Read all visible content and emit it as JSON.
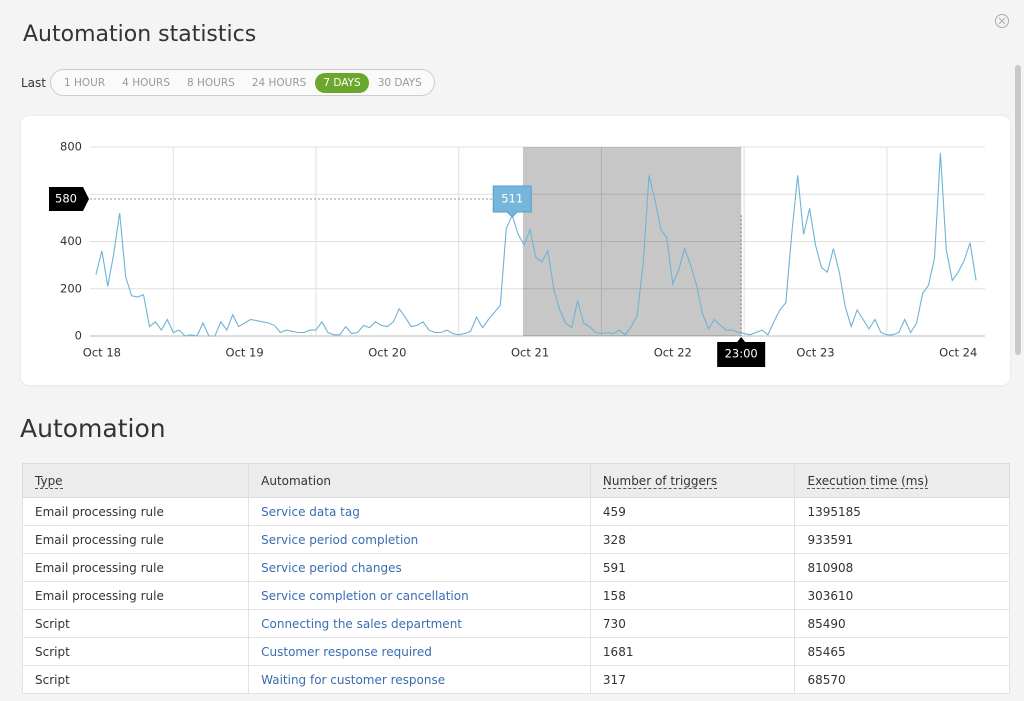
{
  "header": {
    "title": "Automation statistics"
  },
  "range": {
    "label": "Last",
    "options": [
      "1 HOUR",
      "4 HOURS",
      "8 HOURS",
      "24 HOURS",
      "7 DAYS",
      "30 DAYS"
    ],
    "selected_index": 4
  },
  "chart_data": {
    "type": "line",
    "color": "#6fb3d6",
    "x": [
      -1,
      0,
      1,
      2,
      3,
      4,
      5,
      6,
      7,
      8,
      9,
      10,
      11,
      12,
      13,
      14,
      15,
      16,
      17,
      18,
      19,
      20,
      21,
      22,
      23,
      24,
      25,
      26,
      27,
      28,
      29,
      30,
      31,
      32,
      33,
      34,
      35,
      36,
      37,
      38,
      39,
      40,
      41,
      42,
      43,
      44,
      45,
      46,
      47,
      48,
      49,
      50,
      51,
      52,
      53,
      54,
      55,
      56,
      57,
      58,
      59,
      60,
      61,
      62,
      63,
      64,
      65,
      66,
      67,
      68,
      69,
      70,
      71,
      72,
      73,
      74,
      75,
      76,
      77,
      78,
      79,
      80,
      81,
      82,
      83,
      84,
      85,
      86,
      87,
      88,
      89,
      90,
      91,
      92,
      93,
      94,
      95,
      96,
      97,
      98,
      99,
      100,
      101,
      102,
      103,
      104,
      105,
      106,
      107,
      108,
      109,
      110,
      111,
      112,
      113,
      114,
      115,
      116,
      117,
      118,
      119,
      120,
      121,
      122,
      123,
      124,
      125,
      126,
      127,
      128,
      129,
      130,
      131,
      132,
      133,
      134,
      135,
      136,
      137,
      138,
      139,
      140,
      141,
      142,
      143,
      144,
      145,
      146,
      147
    ],
    "values": [
      260,
      360,
      210,
      350,
      520,
      250,
      170,
      165,
      175,
      40,
      60,
      25,
      70,
      15,
      25,
      0,
      5,
      0,
      55,
      0,
      0,
      60,
      25,
      90,
      40,
      55,
      70,
      65,
      60,
      55,
      45,
      15,
      25,
      20,
      15,
      15,
      25,
      25,
      60,
      15,
      5,
      5,
      40,
      10,
      15,
      45,
      35,
      60,
      45,
      40,
      60,
      115,
      80,
      40,
      45,
      60,
      25,
      15,
      15,
      25,
      10,
      5,
      10,
      20,
      80,
      35,
      70,
      100,
      130,
      455,
      511,
      430,
      385,
      450,
      330,
      315,
      360,
      195,
      110,
      55,
      35,
      150,
      55,
      40,
      15,
      10,
      15,
      10,
      25,
      5,
      40,
      85,
      305,
      680,
      575,
      450,
      415,
      220,
      280,
      370,
      300,
      215,
      95,
      30,
      70,
      45,
      25,
      25,
      15,
      10,
      5,
      15,
      25,
      5,
      60,
      110,
      140,
      430,
      680,
      430,
      540,
      385,
      290,
      270,
      370,
      270,
      125,
      40,
      110,
      70,
      30,
      70,
      15,
      5,
      5,
      15,
      70,
      15,
      55,
      180,
      215,
      330,
      775,
      365,
      235,
      270,
      320,
      395,
      235
    ],
    "xlim": [
      -2,
      148.5
    ],
    "xticks": [
      {
        "value": 0,
        "label": "Oct 18"
      },
      {
        "value": 24,
        "label": "Oct 19"
      },
      {
        "value": 48,
        "label": "Oct 20"
      },
      {
        "value": 72,
        "label": "Oct 21"
      },
      {
        "value": 96,
        "label": "Oct 22"
      },
      {
        "value": 120,
        "label": "Oct 23"
      },
      {
        "value": 144,
        "label": "Oct 24"
      }
    ],
    "xgrid": [
      12,
      36,
      60,
      84,
      108,
      132
    ],
    "ylim": [
      0,
      800
    ],
    "yticks": [
      0,
      200,
      400,
      600,
      800
    ],
    "grid": true,
    "selection": [
      70.8,
      107.5
    ],
    "crosshair": {
      "y": 580,
      "x": {
        "value": 107.5,
        "label": "23:00"
      }
    }
  },
  "section": {
    "title": "Automation"
  },
  "table": {
    "columns": [
      "Type",
      "Automation",
      "Number of triggers",
      "Execution time (ms)"
    ],
    "rows": [
      [
        "Email processing rule",
        "Service data tag",
        459,
        1395185
      ],
      [
        "Email processing rule",
        "Service period completion",
        328,
        933591
      ],
      [
        "Email processing rule",
        "Service period changes",
        591,
        810908
      ],
      [
        "Email processing rule",
        "Service completion or cancellation",
        158,
        303610
      ],
      [
        "Script",
        "Connecting the sales department",
        730,
        85490
      ],
      [
        "Script",
        "Customer response required",
        1681,
        85465
      ],
      [
        "Script",
        "Waiting for customer response",
        317,
        68570
      ]
    ]
  }
}
